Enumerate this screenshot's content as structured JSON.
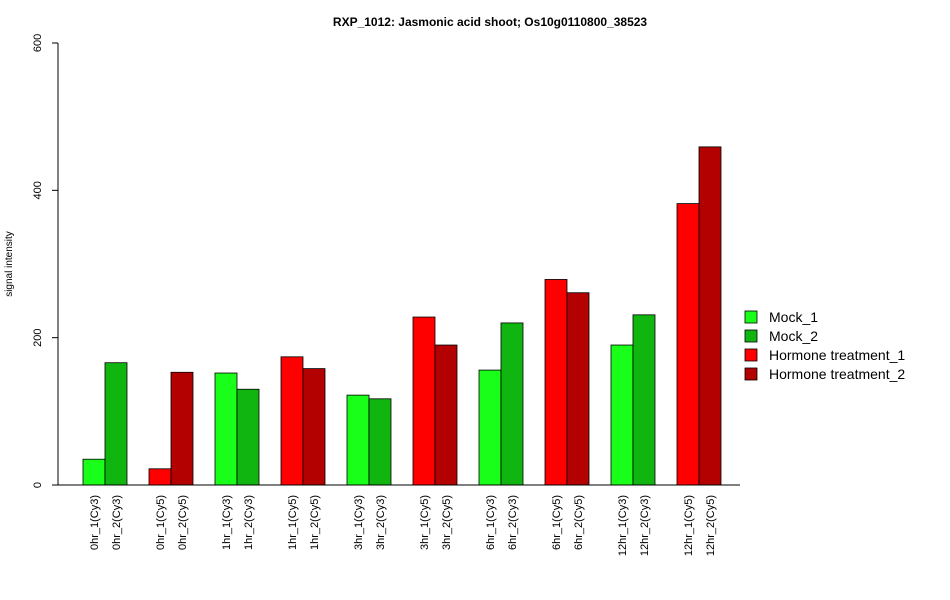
{
  "chart_data": {
    "type": "bar",
    "title": "RXP_1012: Jasmonic acid shoot; Os10g0110800_38523",
    "ylabel": "signal intensity",
    "xlabel": "",
    "ylim": [
      0,
      600
    ],
    "yticks": [
      0,
      200,
      400,
      600
    ],
    "grid": false,
    "legend_position": "right",
    "series": [
      {
        "name": "Mock_1",
        "color": "#1aff1a"
      },
      {
        "name": "Mock_2",
        "color": "#10b510"
      },
      {
        "name": "Hormone treatment_1",
        "color": "#ff0000"
      },
      {
        "name": "Hormone treatment_2",
        "color": "#b30000"
      }
    ],
    "bars": [
      {
        "label": "0hr_1(Cy3)",
        "value": 35,
        "series": 0
      },
      {
        "label": "0hr_2(Cy3)",
        "value": 166,
        "series": 1
      },
      {
        "label": "0hr_1(Cy5)",
        "value": 22,
        "series": 2
      },
      {
        "label": "0hr_2(Cy5)",
        "value": 153,
        "series": 3
      },
      {
        "label": "1hr_1(Cy3)",
        "value": 152,
        "series": 0
      },
      {
        "label": "1hr_2(Cy3)",
        "value": 130,
        "series": 1
      },
      {
        "label": "1hr_1(Cy5)",
        "value": 174,
        "series": 2
      },
      {
        "label": "1hr_2(Cy5)",
        "value": 158,
        "series": 3
      },
      {
        "label": "3hr_1(Cy3)",
        "value": 122,
        "series": 0
      },
      {
        "label": "3hr_2(Cy3)",
        "value": 117,
        "series": 1
      },
      {
        "label": "3hr_1(Cy5)",
        "value": 228,
        "series": 2
      },
      {
        "label": "3hr_2(Cy5)",
        "value": 190,
        "series": 3
      },
      {
        "label": "6hr_1(Cy3)",
        "value": 156,
        "series": 0
      },
      {
        "label": "6hr_2(Cy3)",
        "value": 220,
        "series": 1
      },
      {
        "label": "6hr_1(Cy5)",
        "value": 279,
        "series": 2
      },
      {
        "label": "6hr_2(Cy5)",
        "value": 261,
        "series": 3
      },
      {
        "label": "12hr_1(Cy3)",
        "value": 190,
        "series": 0
      },
      {
        "label": "12hr_2(Cy3)",
        "value": 231,
        "series": 1
      },
      {
        "label": "12hr_1(Cy5)",
        "value": 382,
        "series": 2
      },
      {
        "label": "12hr_2(Cy5)",
        "value": 459,
        "series": 3
      }
    ]
  }
}
